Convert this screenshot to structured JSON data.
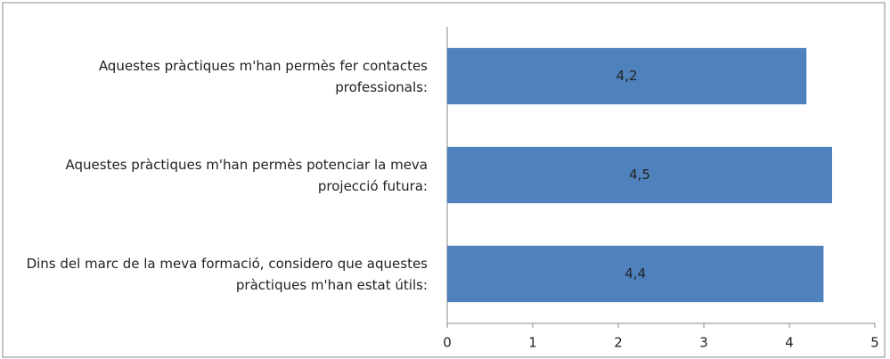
{
  "chart_data": {
    "type": "bar",
    "orientation": "horizontal",
    "categories": [
      "Aquestes pràctiques m'han permès fer contactes professionals:",
      "Aquestes pràctiques m'han permès potenciar la meva projecció futura:",
      "Dins del marc de la meva formació, considero que aquestes pràctiques m'han estat útils:"
    ],
    "values": [
      4.2,
      4.5,
      4.4
    ],
    "value_labels": [
      "4,2",
      "4,5",
      "4,4"
    ],
    "color": "#4f81bd",
    "xlim": [
      0,
      5
    ],
    "xticks": [
      0,
      1,
      2,
      3,
      4,
      5
    ],
    "grid": false
  }
}
